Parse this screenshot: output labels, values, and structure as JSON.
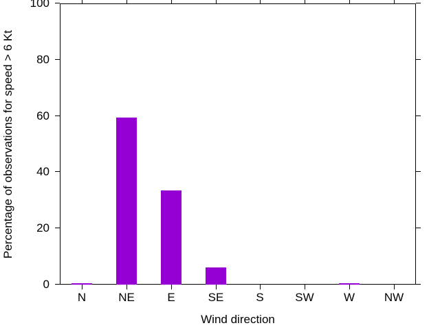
{
  "chart_data": {
    "type": "bar",
    "title": "",
    "xlabel": "Wind direction",
    "ylabel": "Percentage of observations for speed > 6 Kt",
    "categories": [
      "N",
      "NE",
      "E",
      "SE",
      "S",
      "SW",
      "W",
      "NW"
    ],
    "values": [
      0.4,
      59.4,
      33.4,
      6.1,
      0,
      0,
      0.4,
      0
    ],
    "ylim": [
      0,
      100
    ],
    "yticks": [
      0,
      20,
      40,
      60,
      80,
      100
    ],
    "grid": false,
    "legend_position": "none",
    "tick_direction": "out",
    "border": "all-sides",
    "colors": {
      "bar": "#9400D3",
      "axis": "#000000",
      "text": "#000000",
      "background": "#ffffff"
    }
  }
}
